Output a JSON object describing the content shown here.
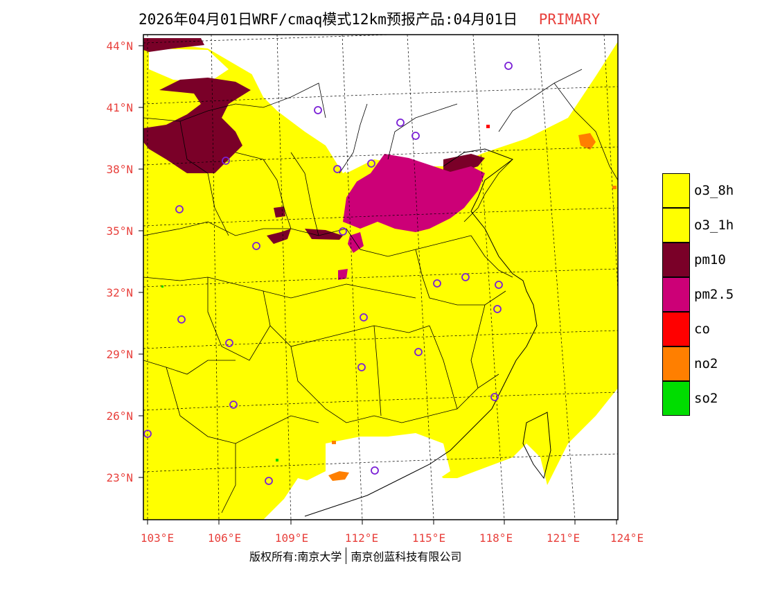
{
  "title": {
    "main": "2026年04月01日WRF/cmaq模式12km预报产品:04月01日",
    "tag": "PRIMARY"
  },
  "axes": {
    "lat_labels": [
      "44°N",
      "41°N",
      "38°N",
      "35°N",
      "32°N",
      "29°N",
      "26°N",
      "23°N"
    ],
    "lon_labels": [
      "103°E",
      "106°E",
      "109°E",
      "112°E",
      "115°E",
      "118°E",
      "121°E",
      "124°E"
    ]
  },
  "legend": {
    "items": [
      {
        "label": "o3_8h",
        "color": "#ffff00"
      },
      {
        "label": "o3_1h",
        "color": "#ffff00"
      },
      {
        "label": "pm10",
        "color": "#7a0028"
      },
      {
        "label": "pm2.5",
        "color": "#cc0077"
      },
      {
        "label": "co",
        "color": "#ff0000"
      },
      {
        "label": "no2",
        "color": "#ff7f00"
      },
      {
        "label": "so2",
        "color": "#00dd00"
      }
    ]
  },
  "colors": {
    "o3": "#ffff00",
    "pm10": "#7a0028",
    "pm25": "#cc0077",
    "no2": "#ff7f00",
    "station": "#7a1fd6",
    "axis_label": "#e8403c"
  },
  "footer": {
    "left": "版权所有:南京大学",
    "right": "南京创蓝科技有限公司"
  }
}
